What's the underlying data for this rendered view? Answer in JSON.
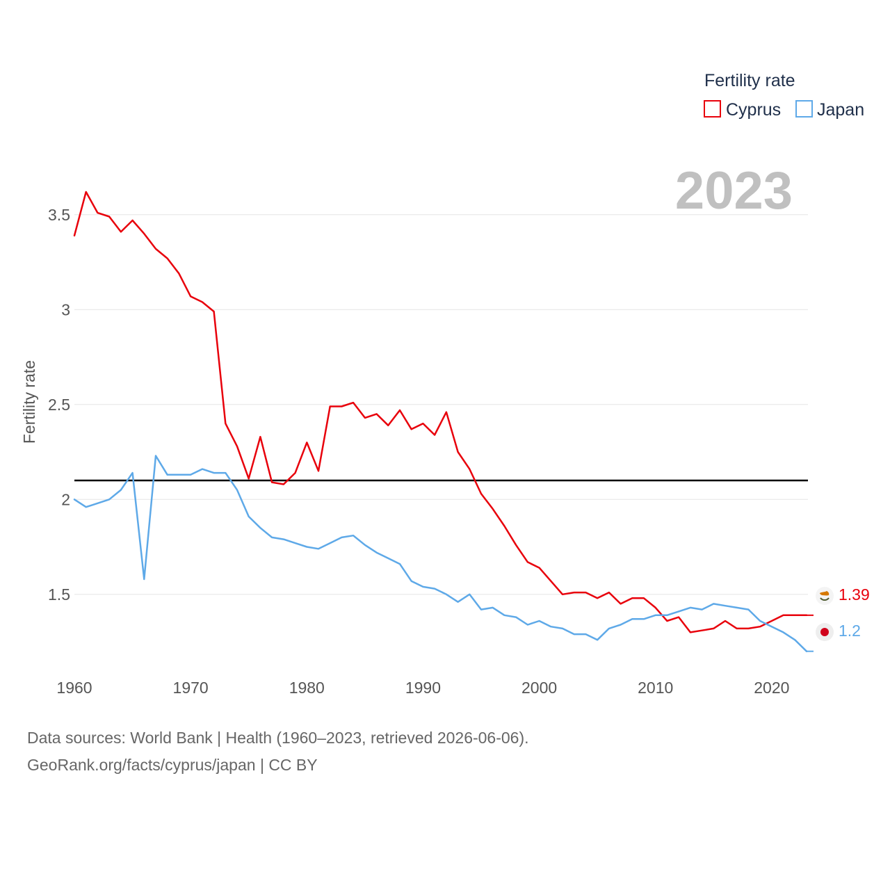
{
  "chart_data": {
    "type": "line",
    "year_stamp": "2023",
    "ylabel": "Fertility rate",
    "xlabel": "",
    "xlim": [
      1960,
      2023
    ],
    "ylim": [
      1.1,
      3.73
    ],
    "y_ticks": [
      1.5,
      2,
      2.5,
      3,
      3.5
    ],
    "y_tick_labels": [
      "1.5",
      "2",
      "2.5",
      "3",
      "3.5"
    ],
    "x_ticks": [
      1960,
      1970,
      1980,
      1990,
      2000,
      2010,
      2020
    ],
    "x_tick_labels": [
      "1960",
      "1970",
      "1980",
      "1990",
      "2000",
      "2010",
      "2020"
    ],
    "grid": true,
    "reference_line": {
      "y": 2.1,
      "color": "#000000"
    },
    "legend": {
      "title": "Fertility rate",
      "position": "top-right"
    },
    "x": [
      1960,
      1961,
      1962,
      1963,
      1964,
      1965,
      1966,
      1967,
      1968,
      1969,
      1970,
      1971,
      1972,
      1973,
      1974,
      1975,
      1976,
      1977,
      1978,
      1979,
      1980,
      1981,
      1982,
      1983,
      1984,
      1985,
      1986,
      1987,
      1988,
      1989,
      1990,
      1991,
      1992,
      1993,
      1994,
      1995,
      1996,
      1997,
      1998,
      1999,
      2000,
      2001,
      2002,
      2003,
      2004,
      2005,
      2006,
      2007,
      2008,
      2009,
      2010,
      2011,
      2012,
      2013,
      2014,
      2015,
      2016,
      2017,
      2018,
      2019,
      2020,
      2021,
      2022,
      2023
    ],
    "series": [
      {
        "name": "Cyprus",
        "color": "#e8000b",
        "end_label": "1.39",
        "end_marker_icon": "cyprus-flag-icon",
        "values": [
          3.39,
          3.62,
          3.51,
          3.49,
          3.41,
          3.47,
          3.4,
          3.32,
          3.27,
          3.19,
          3.07,
          3.04,
          2.99,
          2.4,
          2.28,
          2.11,
          2.33,
          2.09,
          2.08,
          2.14,
          2.3,
          2.15,
          2.49,
          2.49,
          2.51,
          2.43,
          2.45,
          2.39,
          2.47,
          2.37,
          2.4,
          2.34,
          2.46,
          2.25,
          2.16,
          2.03,
          1.95,
          1.86,
          1.76,
          1.67,
          1.64,
          1.57,
          1.5,
          1.51,
          1.51,
          1.48,
          1.51,
          1.45,
          1.48,
          1.48,
          1.43,
          1.36,
          1.38,
          1.3,
          1.31,
          1.32,
          1.36,
          1.32,
          1.32,
          1.33,
          1.36,
          1.39,
          1.39,
          1.39
        ]
      },
      {
        "name": "Japan",
        "color": "#5ea9e8",
        "end_label": "1.2",
        "end_marker_icon": "japan-flag-icon",
        "values": [
          2.0,
          1.96,
          1.98,
          2.0,
          2.05,
          2.14,
          1.58,
          2.23,
          2.13,
          2.13,
          2.13,
          2.16,
          2.14,
          2.14,
          2.05,
          1.91,
          1.85,
          1.8,
          1.79,
          1.77,
          1.75,
          1.74,
          1.77,
          1.8,
          1.81,
          1.76,
          1.72,
          1.69,
          1.66,
          1.57,
          1.54,
          1.53,
          1.5,
          1.46,
          1.5,
          1.42,
          1.43,
          1.39,
          1.38,
          1.34,
          1.36,
          1.33,
          1.32,
          1.29,
          1.29,
          1.26,
          1.32,
          1.34,
          1.37,
          1.37,
          1.39,
          1.39,
          1.41,
          1.43,
          1.42,
          1.45,
          1.44,
          1.43,
          1.42,
          1.36,
          1.33,
          1.3,
          1.26,
          1.2
        ]
      }
    ]
  },
  "footer": {
    "sources": "Data sources: World Bank | Health (1960–2023, retrieved 2026-06-06).",
    "credit": "GeoRank.org/facts/cyprus/japan | CC BY"
  }
}
